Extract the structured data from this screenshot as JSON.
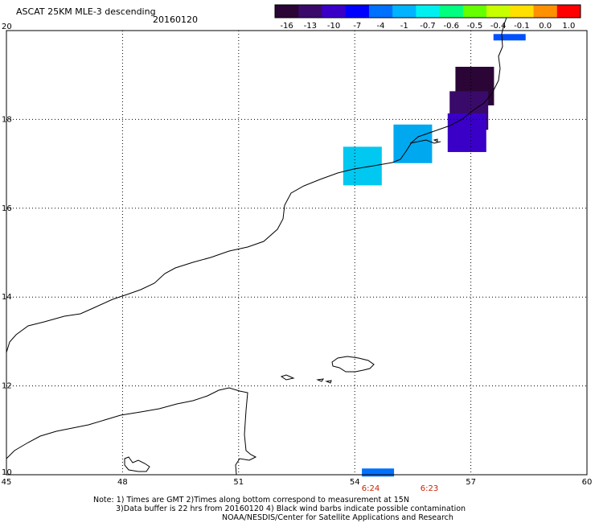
{
  "header": {
    "title": "ASCAT 25KM MLE-3 descending",
    "date": "20160120"
  },
  "colorbar": {
    "colors": [
      "#2a0535",
      "#3a0a6a",
      "#3a00c8",
      "#0000ff",
      "#0070ff",
      "#00b4ff",
      "#00f0f0",
      "#00ff80",
      "#66ff00",
      "#c8ff00",
      "#ffe000",
      "#ff9000",
      "#ff0000"
    ],
    "labels": [
      "-16",
      "-13",
      "-10",
      "-7",
      "-4",
      "-1",
      "-0.7",
      "-0.6",
      "-0.5",
      "-0.4",
      "-0.1",
      "0.0",
      "1.0"
    ]
  },
  "axes": {
    "x_ticks": [
      "45",
      "48",
      "51",
      "54",
      "57",
      "60"
    ],
    "y_ticks": [
      "20",
      "18",
      "16",
      "14",
      "12",
      "10"
    ]
  },
  "time_labels": [
    {
      "text": "6:24",
      "color": "#cc2200"
    },
    {
      "text": "6:23",
      "color": "#cc2200"
    }
  ],
  "data_cells": [
    {
      "lon": 57.1,
      "lat": 18.75,
      "color": "#2a0535"
    },
    {
      "lon": 56.95,
      "lat": 18.2,
      "color": "#3a0a6a"
    },
    {
      "lon": 56.9,
      "lat": 17.7,
      "color": "#3a00c8"
    },
    {
      "lon": 55.5,
      "lat": 17.45,
      "color": "#00a8f0"
    },
    {
      "lon": 54.2,
      "lat": 16.95,
      "color": "#00c8f0"
    },
    {
      "lon": 58.0,
      "lat": 19.85,
      "color": "#0050ff"
    },
    {
      "lon": 54.6,
      "lat": 10.05,
      "color": "#0070ff"
    }
  ],
  "notes": {
    "line1": "Note: 1) Times are GMT 2)Times along bottom correspond to measurement at 15N",
    "line2": "3)Data buffer is 22 hrs from 20160120 4) Black wind barbs indicate possible contamination",
    "line3": "NOAA/NESDIS/Center for Satellite Applications and Research"
  }
}
